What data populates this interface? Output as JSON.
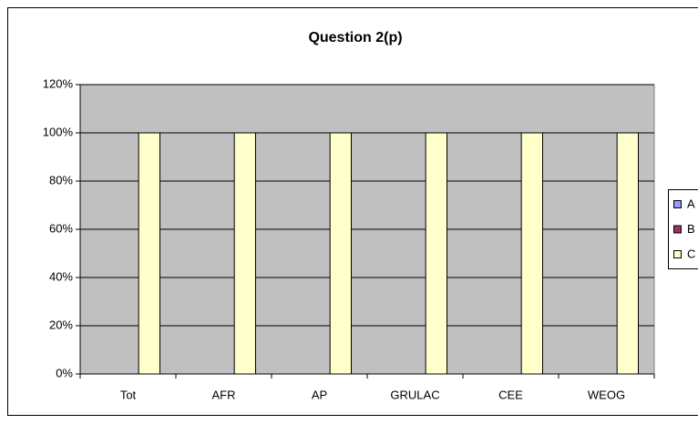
{
  "chart_data": {
    "type": "bar",
    "title": "Question 2(p)",
    "categories": [
      "Tot",
      "AFR",
      "AP",
      "GRULAC",
      "CEE",
      "WEOG"
    ],
    "series": [
      {
        "name": "A",
        "color": "#9999ff",
        "values": [
          0,
          0,
          0,
          0,
          0,
          0
        ]
      },
      {
        "name": "B",
        "color": "#993366",
        "values": [
          0,
          0,
          0,
          0,
          0,
          0
        ]
      },
      {
        "name": "C",
        "color": "#ffffcc",
        "values": [
          100,
          100,
          100,
          100,
          100,
          100
        ]
      }
    ],
    "ylim": [
      0,
      120
    ],
    "yticks": [
      {
        "value": 0,
        "label": "0%"
      },
      {
        "value": 20,
        "label": "20%"
      },
      {
        "value": 40,
        "label": "40%"
      },
      {
        "value": 60,
        "label": "60%"
      },
      {
        "value": 80,
        "label": "80%"
      },
      {
        "value": 100,
        "label": "100%"
      },
      {
        "value": 120,
        "label": "120%"
      }
    ],
    "grid": true,
    "plot_background": "#c0c0c0",
    "legend": "right"
  }
}
